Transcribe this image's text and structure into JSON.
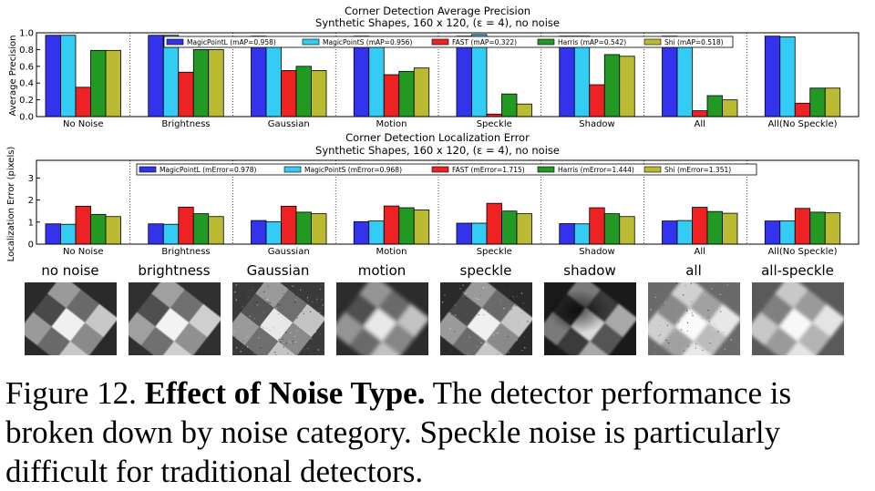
{
  "chart_data": [
    {
      "type": "bar",
      "title": "Corner Detection Average Precision",
      "subtitle": "Synthetic Shapes, 160 x 120, (ε = 4), no noise",
      "xlabel": "",
      "ylabel": "Average Precision",
      "ylim": [
        0,
        1.0
      ],
      "yticks": [
        "0.0",
        "0.2",
        "0.4",
        "0.6",
        "0.8",
        "1.0"
      ],
      "grid": "x-dotted",
      "legend_placement": "top",
      "categories": [
        "No Noise",
        "Brightness",
        "Gaussian",
        "Motion",
        "Speckle",
        "Shadow",
        "All",
        "All(No Speckle)"
      ],
      "series": [
        {
          "name": "MagicPointL (mAP=0.958)",
          "color": "#3333ee",
          "values": [
            0.97,
            0.97,
            0.96,
            0.96,
            0.96,
            0.96,
            0.96,
            0.96
          ]
        },
        {
          "name": "MagicPointS (mAP=0.956)",
          "color": "#33ccf5",
          "values": [
            0.97,
            0.97,
            0.95,
            0.95,
            0.98,
            0.96,
            0.95,
            0.95
          ]
        },
        {
          "name": "FAST (mAP=0.322)",
          "color": "#ee2222",
          "values": [
            0.35,
            0.53,
            0.55,
            0.5,
            0.03,
            0.38,
            0.07,
            0.16
          ]
        },
        {
          "name": "Harris (mAP=0.542)",
          "color": "#229922",
          "values": [
            0.79,
            0.8,
            0.6,
            0.54,
            0.27,
            0.74,
            0.25,
            0.34
          ]
        },
        {
          "name": "Shi (mAP=0.518)",
          "color": "#bbbb33",
          "values": [
            0.79,
            0.8,
            0.55,
            0.58,
            0.15,
            0.72,
            0.2,
            0.34
          ]
        }
      ]
    },
    {
      "type": "bar",
      "title": "Corner Detection Localization Error",
      "subtitle": "Synthetic Shapes, 160 x 120, (ε = 4), no noise",
      "xlabel": "",
      "ylabel": "Localization Error (pixels)",
      "ylim": [
        0,
        3.8
      ],
      "yticks": [
        "0",
        "1",
        "2",
        "3"
      ],
      "grid": "x-dotted",
      "legend_placement": "top",
      "categories": [
        "No Noise",
        "Brightness",
        "Gaussian",
        "Motion",
        "Speckle",
        "Shadow",
        "All",
        "All(No Speckle)"
      ],
      "series": [
        {
          "name": "MagicPointL (mError=0.978)",
          "color": "#3333ee",
          "values": [
            0.92,
            0.92,
            1.07,
            1.02,
            0.95,
            0.93,
            1.05,
            1.05
          ]
        },
        {
          "name": "MagicPointS (mError=0.968)",
          "color": "#33ccf5",
          "values": [
            0.9,
            0.9,
            1.02,
            1.05,
            0.95,
            0.92,
            1.07,
            1.05
          ]
        },
        {
          "name": "FAST (mError=1.715)",
          "color": "#ee2222",
          "values": [
            1.72,
            1.68,
            1.72,
            1.73,
            1.85,
            1.65,
            1.67,
            1.62
          ]
        },
        {
          "name": "Harris (mError=1.444)",
          "color": "#229922",
          "values": [
            1.35,
            1.38,
            1.45,
            1.65,
            1.5,
            1.38,
            1.48,
            1.45
          ]
        },
        {
          "name": "Shi (mError=1.351)",
          "color": "#bbbb33",
          "values": [
            1.25,
            1.25,
            1.38,
            1.55,
            1.38,
            1.25,
            1.4,
            1.42
          ]
        }
      ]
    }
  ],
  "thumbnails": {
    "labels": [
      "no noise",
      "brightness",
      "Gaussian",
      "motion",
      "speckle",
      "shadow",
      "all",
      "all-speckle"
    ]
  },
  "caption": {
    "prefix": "Figure 12.",
    "bold": "Effect of Noise Type.",
    "text": "The detector performance is broken down by noise category. Speckle noise is particularly difficult for traditional detectors."
  }
}
